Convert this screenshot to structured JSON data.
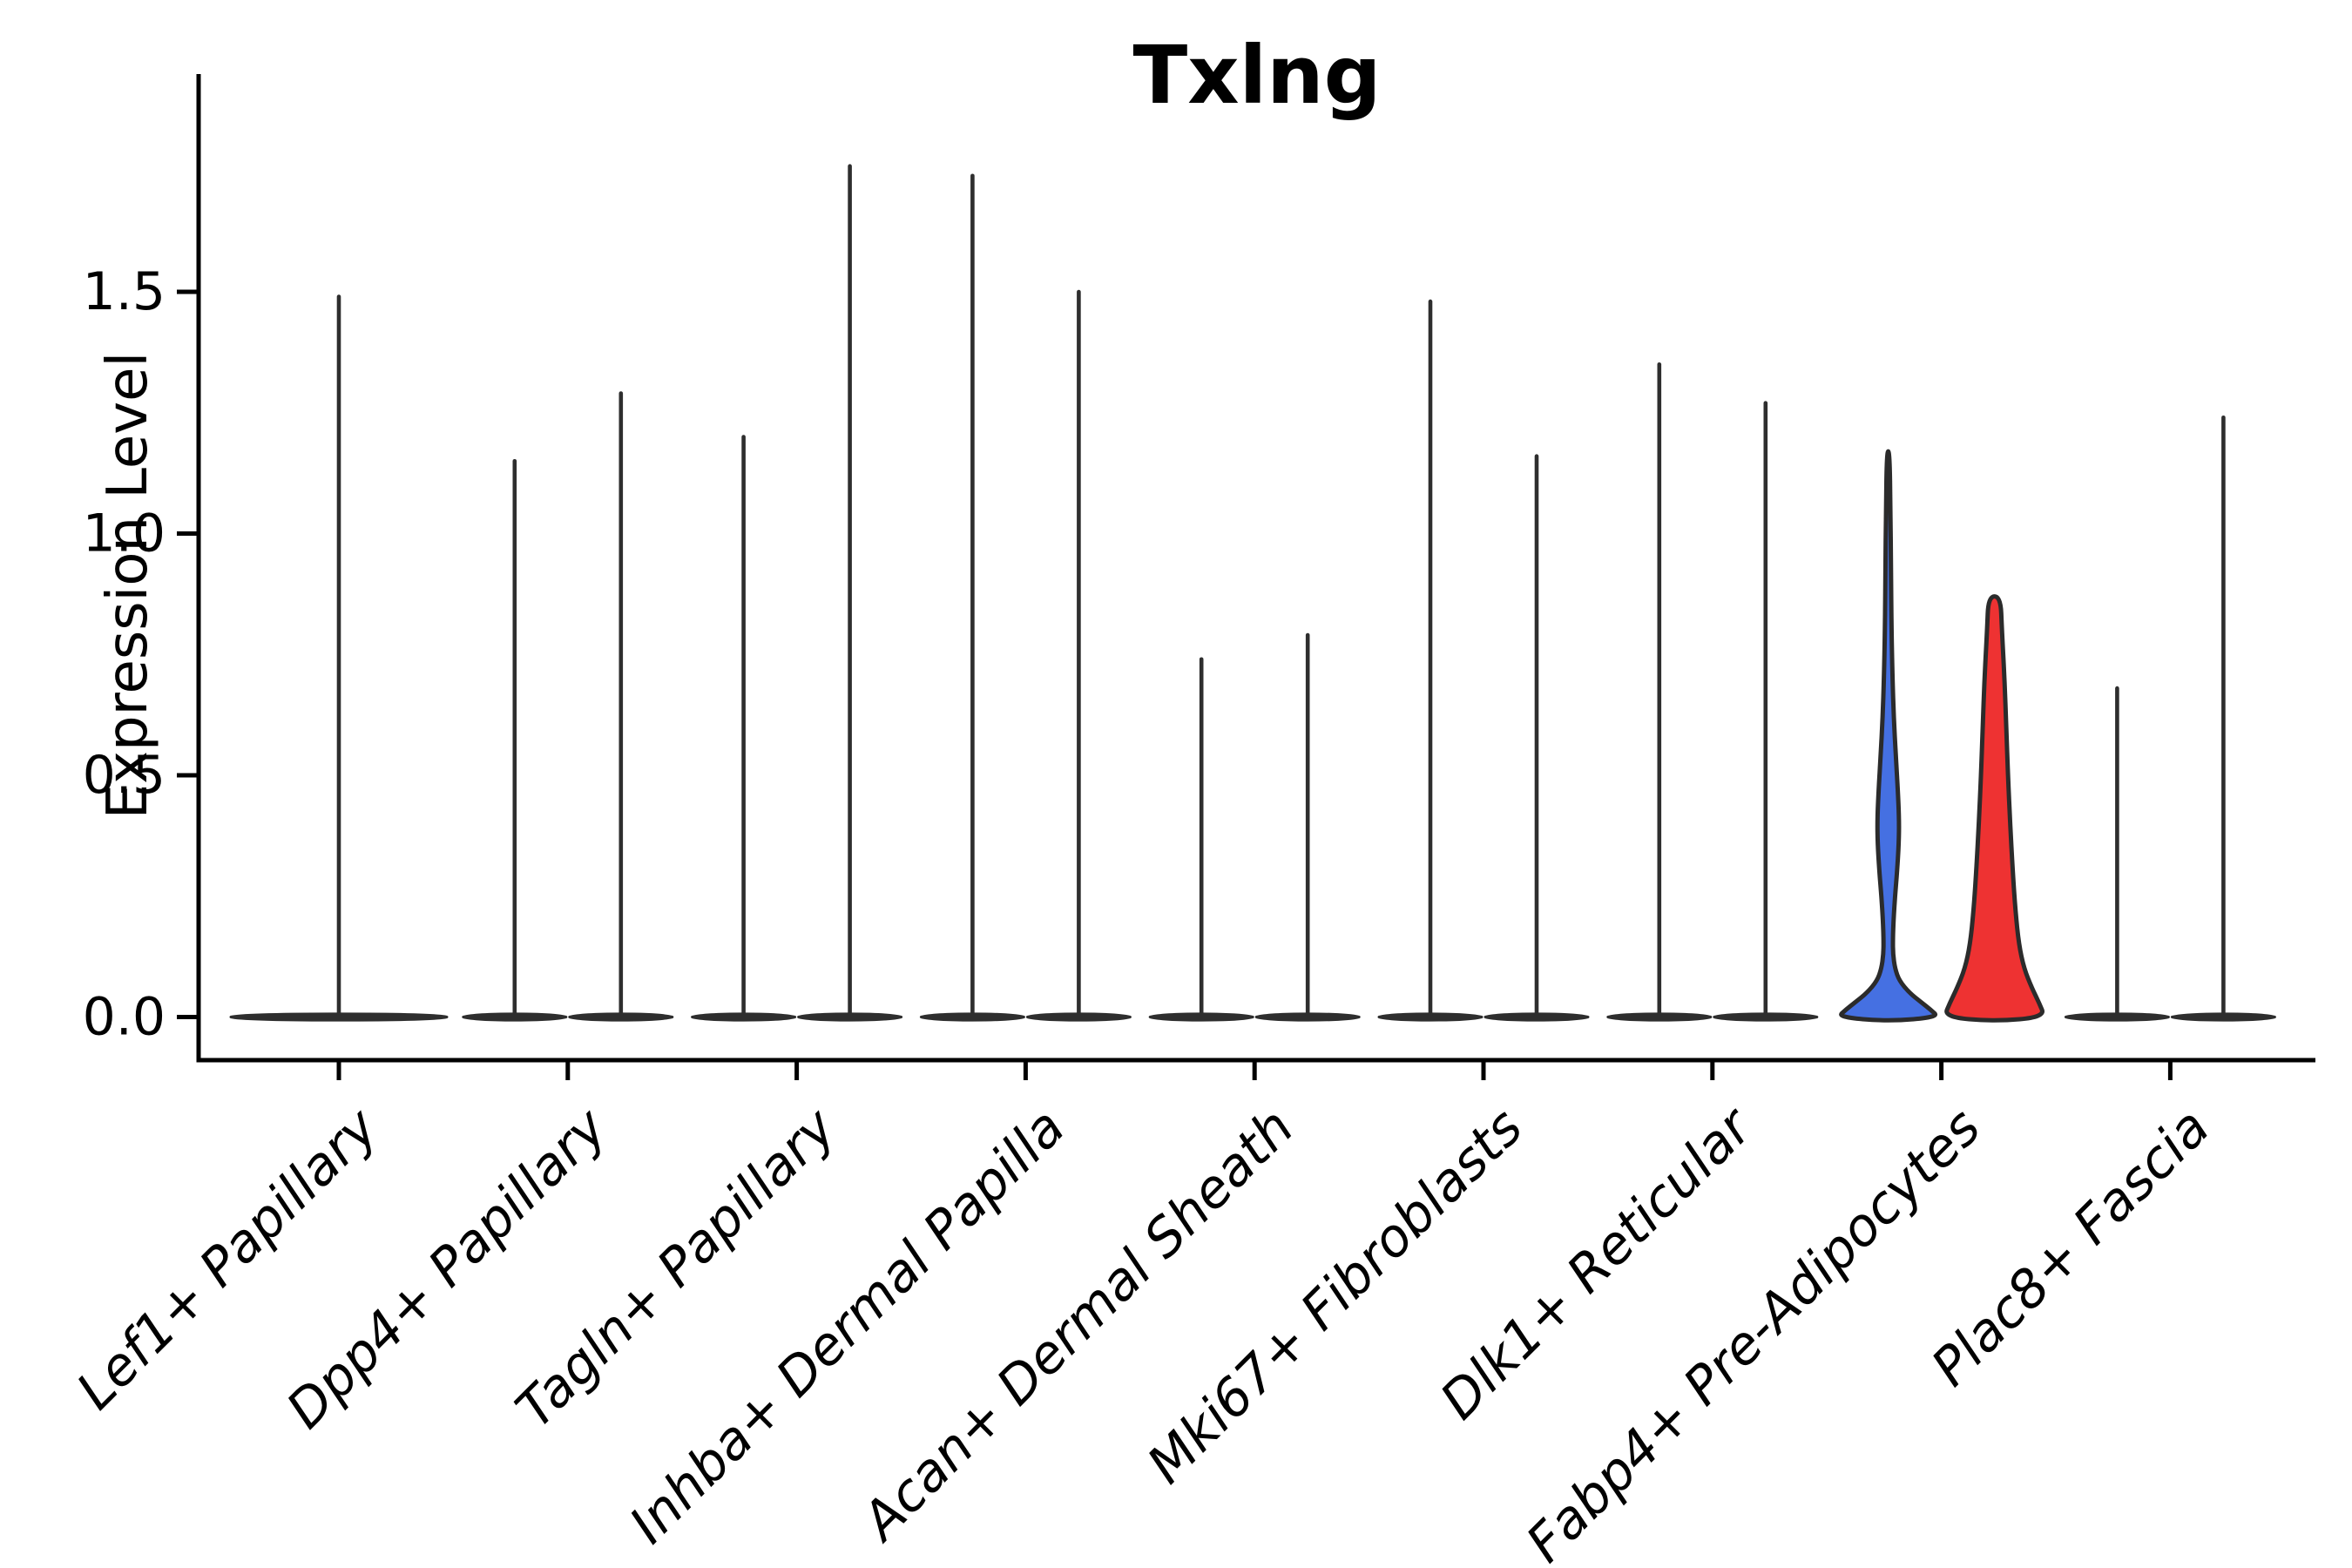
{
  "chart_data": {
    "type": "violin",
    "title": "Txlng",
    "ylabel": "Expression Level",
    "xlabel": "",
    "yticks": [
      0.0,
      0.5,
      1.0,
      1.5
    ],
    "ytick_labels": [
      "0.0",
      "0.5",
      "1.0",
      "1.5"
    ],
    "ylim": [
      -0.09,
      1.95
    ],
    "grid": false,
    "legend": "none",
    "orientation": "vertical",
    "groups_per_category": 2,
    "categories": [
      "Lef1+ Papillary",
      "Dpp4+ Papillary",
      "Tagln+ Papillary",
      "Inhba+ Dermal Papilla",
      "Acan+ Dermal Sheath",
      "Mki67+ Fibroblasts",
      "Dlk1+ Reticular",
      "Fabp4+ Pre-Adipocytes",
      "Plac8+ Fascia"
    ],
    "series": [
      {
        "category": "Lef1+ Papillary",
        "violins": [
          {
            "group": 1,
            "max": 1.49,
            "style": "thin-spike",
            "align": "center"
          }
        ]
      },
      {
        "category": "Dpp4+ Papillary",
        "violins": [
          {
            "group": 1,
            "max": 1.15,
            "style": "thin-spike"
          },
          {
            "group": 2,
            "max": 1.29,
            "style": "thin-spike"
          }
        ]
      },
      {
        "category": "Tagln+ Papillary",
        "violins": [
          {
            "group": 1,
            "max": 1.2,
            "style": "thin-spike"
          },
          {
            "group": 2,
            "max": 1.76,
            "style": "thin-spike"
          }
        ]
      },
      {
        "category": "Inhba+ Dermal Papilla",
        "violins": [
          {
            "group": 1,
            "max": 1.74,
            "style": "thin-spike"
          },
          {
            "group": 2,
            "max": 1.5,
            "style": "thin-spike"
          }
        ]
      },
      {
        "category": "Acan+ Dermal Sheath",
        "violins": [
          {
            "group": 1,
            "max": 0.74,
            "style": "thin-spike"
          },
          {
            "group": 2,
            "max": 0.79,
            "style": "thin-spike"
          }
        ]
      },
      {
        "category": "Mki67+ Fibroblasts",
        "violins": [
          {
            "group": 1,
            "max": 1.48,
            "style": "thin-spike"
          },
          {
            "group": 2,
            "max": 1.16,
            "style": "thin-spike"
          }
        ]
      },
      {
        "category": "Dlk1+ Reticular",
        "violins": [
          {
            "group": 1,
            "max": 1.35,
            "style": "thin-spike"
          },
          {
            "group": 2,
            "max": 1.27,
            "style": "thin-spike"
          }
        ]
      },
      {
        "category": "Fabp4+ Pre-Adipocytes",
        "violins": [
          {
            "group": 1,
            "max": 1.17,
            "style": "full",
            "color": "#4570E2",
            "profile": [
              [
                1.17,
                0.026
              ],
              [
                1.05,
                0.045
              ],
              [
                0.92,
                0.055
              ],
              [
                0.8,
                0.065
              ],
              [
                0.7,
                0.085
              ],
              [
                0.62,
                0.11
              ],
              [
                0.54,
                0.15
              ],
              [
                0.47,
                0.19
              ],
              [
                0.41,
                0.215
              ],
              [
                0.36,
                0.21
              ],
              [
                0.3,
                0.175
              ],
              [
                0.25,
                0.135
              ],
              [
                0.2,
                0.105
              ],
              [
                0.16,
                0.092
              ],
              [
                0.13,
                0.095
              ],
              [
                0.1,
                0.135
              ],
              [
                0.075,
                0.22
              ],
              [
                0.05,
                0.42
              ],
              [
                0.03,
                0.66
              ],
              [
                0.015,
                0.84
              ],
              [
                0.0,
                1.0
              ]
            ]
          },
          {
            "group": 2,
            "max": 0.87,
            "style": "full",
            "color": "#EE3232",
            "profile": [
              [
                0.87,
                0.12
              ],
              [
                0.8,
                0.147
              ],
              [
                0.7,
                0.198
              ],
              [
                0.6,
                0.233
              ],
              [
                0.5,
                0.267
              ],
              [
                0.4,
                0.31
              ],
              [
                0.3,
                0.362
              ],
              [
                0.22,
                0.414
              ],
              [
                0.15,
                0.483
              ],
              [
                0.1,
                0.586
              ],
              [
                0.06,
                0.74
              ],
              [
                0.03,
                0.88
              ],
              [
                0.0,
                1.0
              ]
            ]
          }
        ]
      },
      {
        "category": "Plac8+ Fascia",
        "violins": [
          {
            "group": 1,
            "max": 0.68,
            "style": "thin-spike"
          },
          {
            "group": 2,
            "max": 1.24,
            "style": "thin-spike"
          }
        ]
      }
    ],
    "colors": {
      "thin_violin": "#2E2E2E",
      "violin_outline": "#2B2B2B",
      "highlight_blue": "#4570E2",
      "highlight_red": "#EE3232",
      "axis": "#000000",
      "background": "#FFFFFF"
    }
  }
}
